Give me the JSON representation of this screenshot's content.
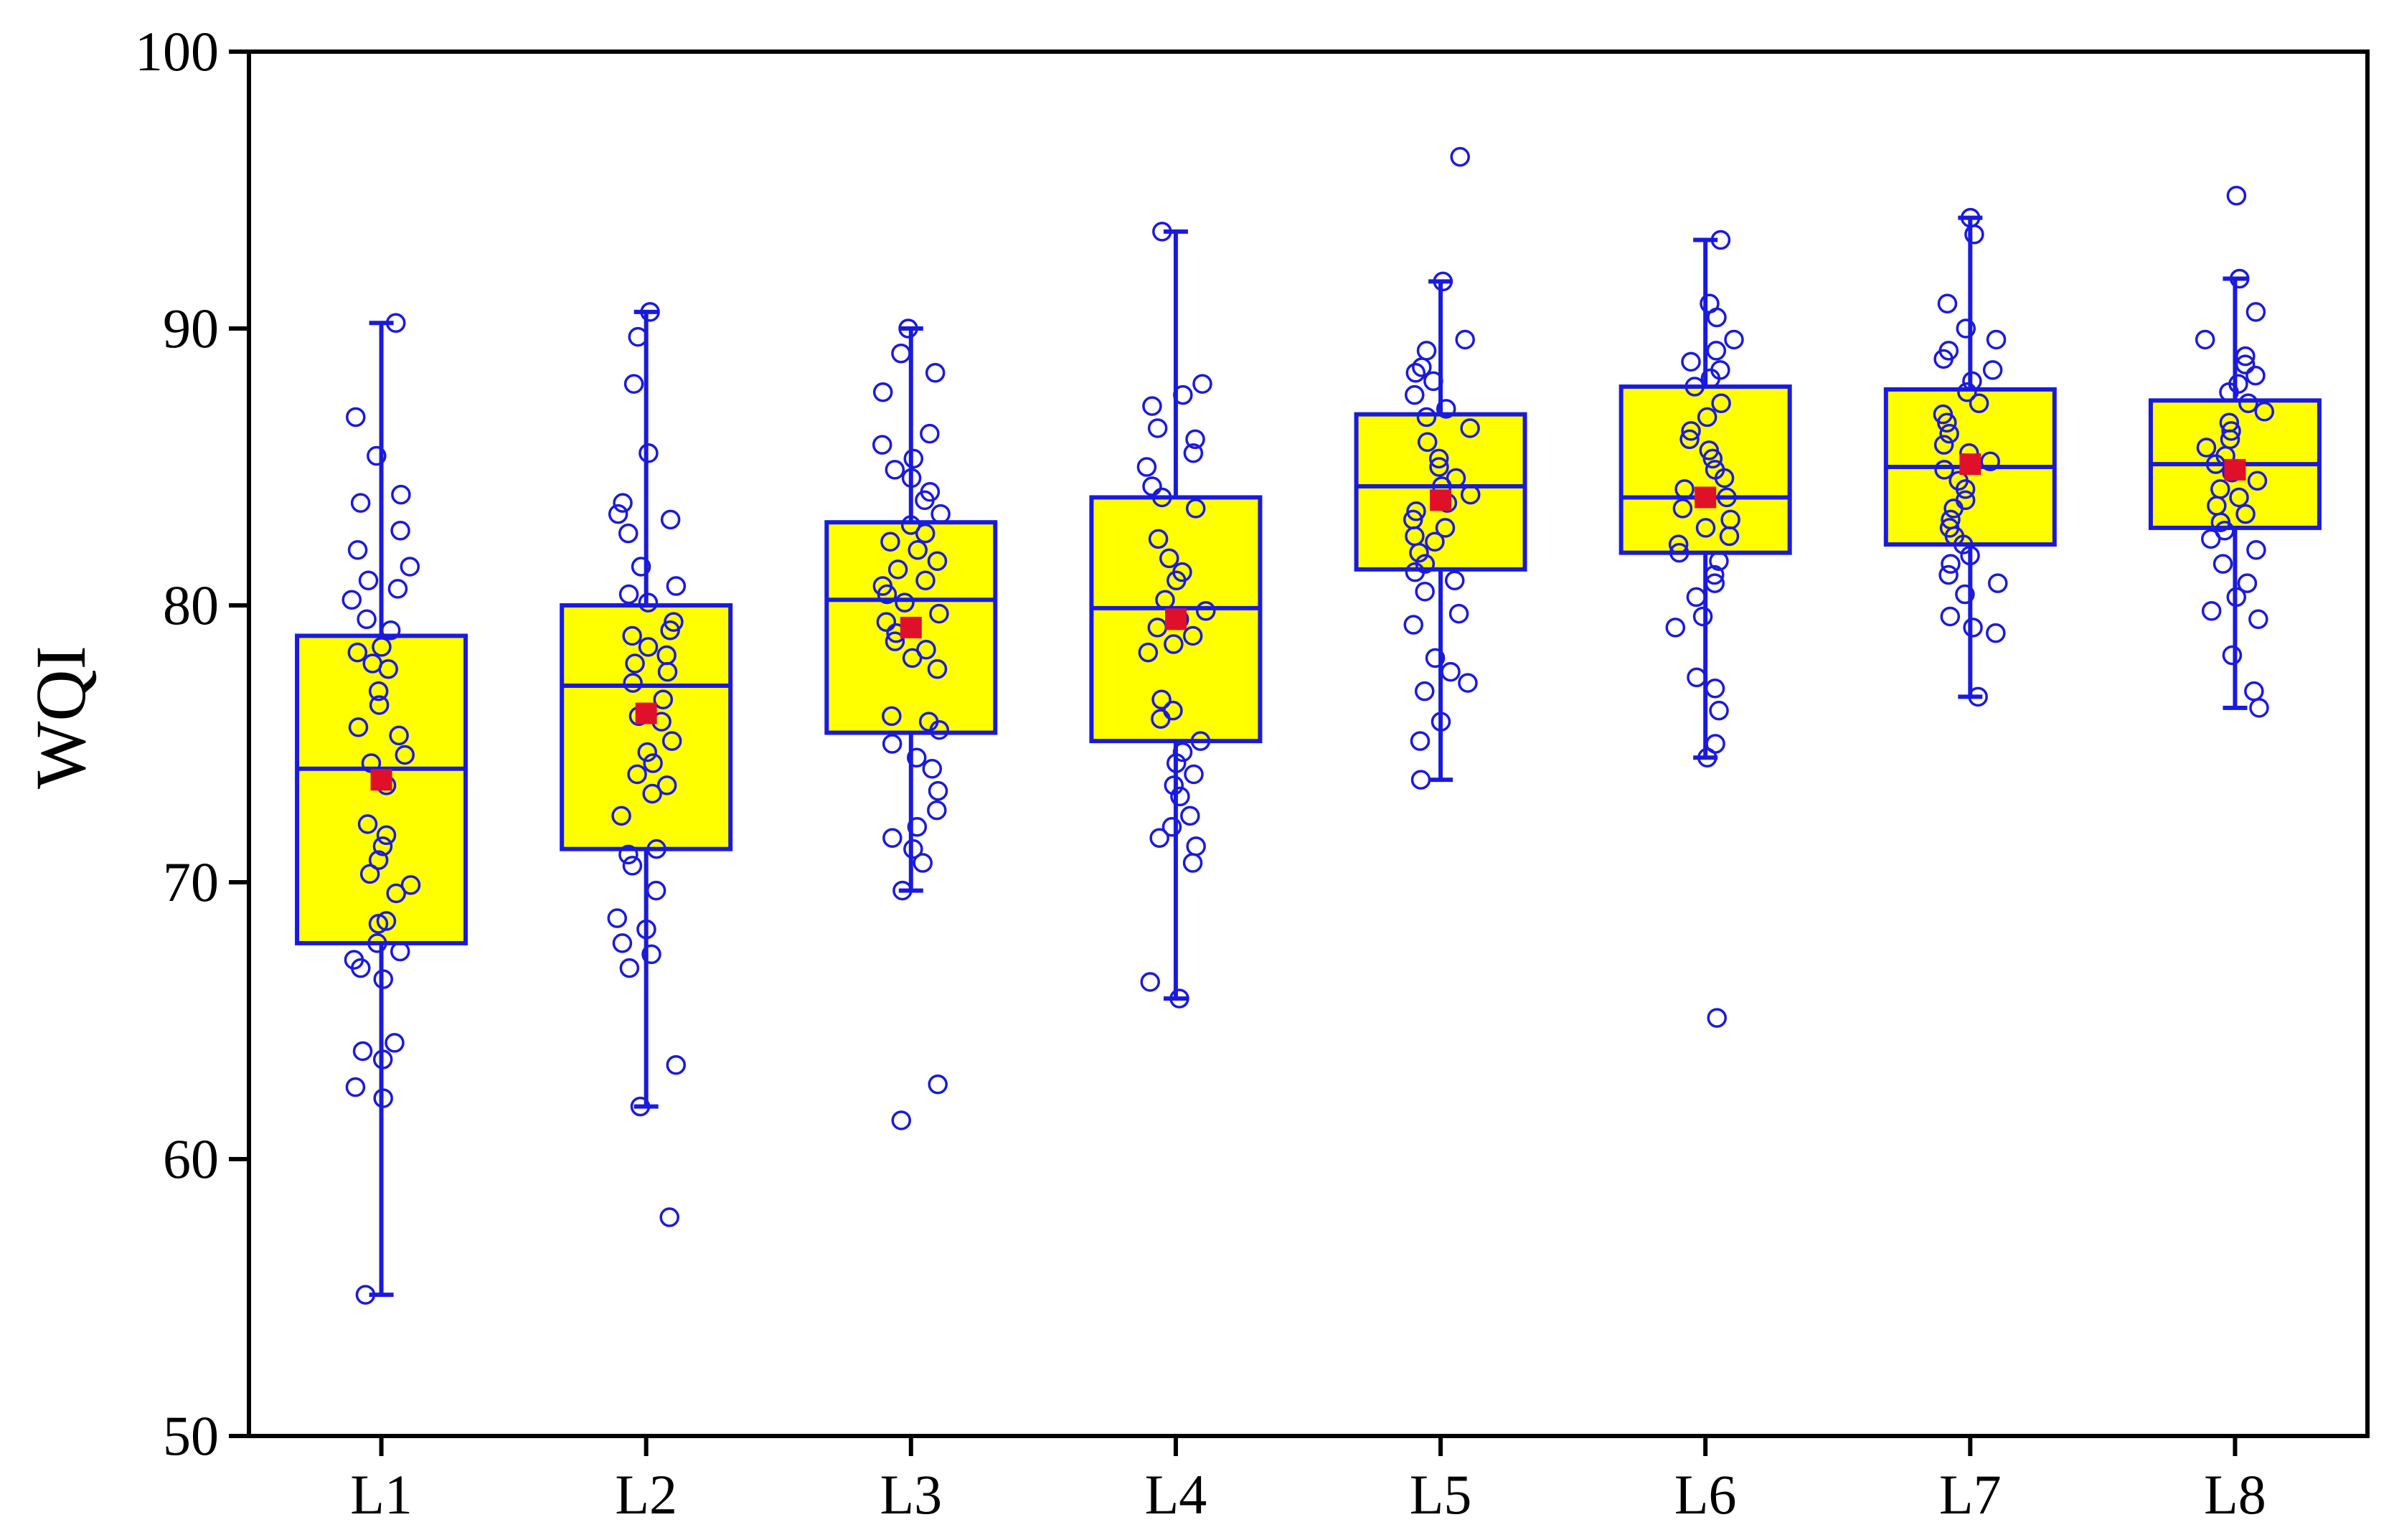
{
  "chart_data": {
    "type": "box",
    "title": "",
    "xlabel": "",
    "ylabel": "WQI",
    "ylim": [
      50,
      100
    ],
    "yticks": [
      50,
      60,
      70,
      80,
      90,
      100
    ],
    "categories": [
      "L1",
      "L2",
      "L3",
      "L4",
      "L5",
      "L6",
      "L7",
      "L8"
    ],
    "grid": false,
    "colors": {
      "box_fill": "#ffff00",
      "box_stroke": "#1a1adf",
      "points": "#1a1adf",
      "mean": "#e0102a",
      "axis": "#000000"
    },
    "series": [
      {
        "category": "L1",
        "whisker_low": 55.1,
        "q1": 67.8,
        "median": 74.1,
        "q3": 78.9,
        "whisker_high": 90.2,
        "mean": 73.7,
        "points": [
          90.2,
          86.8,
          85.4,
          84.0,
          83.7,
          82.7,
          82.0,
          81.4,
          80.9,
          80.6,
          80.2,
          79.5,
          79.1,
          78.5,
          78.3,
          77.9,
          77.7,
          76.9,
          76.4,
          75.6,
          75.3,
          74.6,
          74.3,
          73.8,
          73.5,
          72.1,
          71.7,
          71.3,
          70.8,
          70.3,
          69.9,
          69.6,
          68.6,
          68.5,
          67.8,
          67.5,
          67.2,
          66.9,
          66.5,
          64.2,
          63.9,
          63.6,
          62.6,
          62.2,
          55.1
        ]
      },
      {
        "category": "L2",
        "whisker_low": 61.9,
        "q1": 71.2,
        "median": 77.1,
        "q3": 80.0,
        "whisker_high": 90.6,
        "mean": 76.1,
        "points": [
          90.6,
          89.7,
          88.0,
          85.5,
          83.7,
          83.3,
          83.1,
          82.6,
          81.4,
          80.7,
          80.4,
          80.1,
          79.4,
          79.1,
          78.9,
          78.5,
          78.2,
          77.9,
          77.6,
          77.2,
          76.6,
          76.0,
          75.8,
          75.1,
          74.7,
          74.3,
          73.9,
          73.5,
          73.2,
          72.4,
          71.2,
          71.0,
          70.6,
          69.7,
          68.7,
          68.3,
          67.8,
          67.4,
          66.9,
          63.4,
          61.9,
          57.9
        ]
      },
      {
        "category": "L3",
        "whisker_low": 69.7,
        "q1": 75.4,
        "median": 80.2,
        "q3": 83.0,
        "whisker_high": 90.0,
        "mean": 79.2,
        "points": [
          90.0,
          89.1,
          88.4,
          87.7,
          86.2,
          85.8,
          85.3,
          84.9,
          84.6,
          84.1,
          83.8,
          83.3,
          82.9,
          82.6,
          82.3,
          82.0,
          81.6,
          81.3,
          80.9,
          80.7,
          80.4,
          80.1,
          79.7,
          79.4,
          79.0,
          78.7,
          78.4,
          78.1,
          77.7,
          76.0,
          75.8,
          75.5,
          75.0,
          74.5,
          74.1,
          73.3,
          72.6,
          72.0,
          71.6,
          71.2,
          70.7,
          69.7,
          62.7,
          61.4
        ]
      },
      {
        "category": "L4",
        "whisker_low": 65.8,
        "q1": 75.1,
        "median": 79.9,
        "q3": 83.9,
        "whisker_high": 93.5,
        "mean": 79.5,
        "points": [
          93.5,
          88.0,
          87.6,
          87.2,
          86.4,
          86.0,
          85.5,
          85.0,
          84.3,
          83.9,
          83.5,
          82.4,
          81.7,
          81.2,
          80.9,
          80.2,
          79.8,
          79.5,
          79.2,
          78.9,
          78.6,
          78.3,
          76.6,
          76.2,
          75.9,
          75.1,
          74.7,
          74.3,
          73.9,
          73.5,
          73.1,
          72.4,
          72.0,
          71.6,
          71.3,
          70.7,
          66.4,
          65.8
        ]
      },
      {
        "category": "L5",
        "whisker_low": 73.7,
        "q1": 81.3,
        "median": 84.3,
        "q3": 86.9,
        "whisker_high": 91.7,
        "mean": 83.8,
        "points": [
          96.2,
          91.7,
          89.6,
          89.2,
          88.6,
          88.4,
          88.1,
          87.6,
          87.1,
          86.8,
          86.4,
          85.9,
          85.3,
          85.0,
          84.6,
          84.3,
          84.0,
          83.7,
          83.4,
          83.1,
          82.8,
          82.5,
          82.3,
          81.9,
          81.5,
          81.2,
          80.9,
          80.5,
          79.7,
          79.3,
          78.1,
          77.6,
          77.2,
          76.9,
          75.8,
          75.1,
          73.7
        ]
      },
      {
        "category": "L6",
        "whisker_low": 74.5,
        "q1": 81.9,
        "median": 83.9,
        "q3": 87.9,
        "whisker_high": 93.2,
        "mean": 83.9,
        "points": [
          93.2,
          90.9,
          90.4,
          89.6,
          89.2,
          88.8,
          88.5,
          88.2,
          87.9,
          87.3,
          86.8,
          86.3,
          86.0,
          85.6,
          85.3,
          84.9,
          84.6,
          84.2,
          83.9,
          83.5,
          83.1,
          82.8,
          82.5,
          82.2,
          81.9,
          81.6,
          81.1,
          80.8,
          80.3,
          79.6,
          79.2,
          77.4,
          77.0,
          76.2,
          75.0,
          74.5,
          65.1
        ]
      },
      {
        "category": "L7",
        "whisker_low": 76.7,
        "q1": 82.2,
        "median": 85.0,
        "q3": 87.8,
        "whisker_high": 94.0,
        "mean": 85.1,
        "points": [
          94.0,
          93.4,
          90.9,
          90.0,
          89.6,
          89.2,
          88.9,
          88.5,
          88.1,
          87.7,
          87.3,
          86.9,
          86.6,
          86.2,
          85.8,
          85.5,
          85.2,
          84.9,
          84.5,
          84.2,
          83.8,
          83.5,
          83.1,
          82.8,
          82.5,
          82.2,
          81.8,
          81.5,
          81.1,
          80.8,
          80.4,
          79.6,
          79.2,
          79.0,
          76.7
        ]
      },
      {
        "category": "L8",
        "whisker_low": 76.3,
        "q1": 82.8,
        "median": 85.1,
        "q3": 87.4,
        "whisker_high": 91.8,
        "mean": 84.9,
        "points": [
          94.8,
          91.8,
          90.6,
          89.6,
          89.0,
          88.7,
          88.3,
          88.0,
          87.7,
          87.3,
          87.0,
          86.6,
          86.3,
          86.0,
          85.7,
          85.4,
          85.1,
          84.8,
          84.5,
          84.2,
          83.9,
          83.6,
          83.3,
          83.0,
          82.7,
          82.4,
          82.0,
          81.5,
          80.8,
          80.3,
          79.8,
          79.5,
          78.2,
          76.9,
          76.3
        ]
      }
    ]
  }
}
